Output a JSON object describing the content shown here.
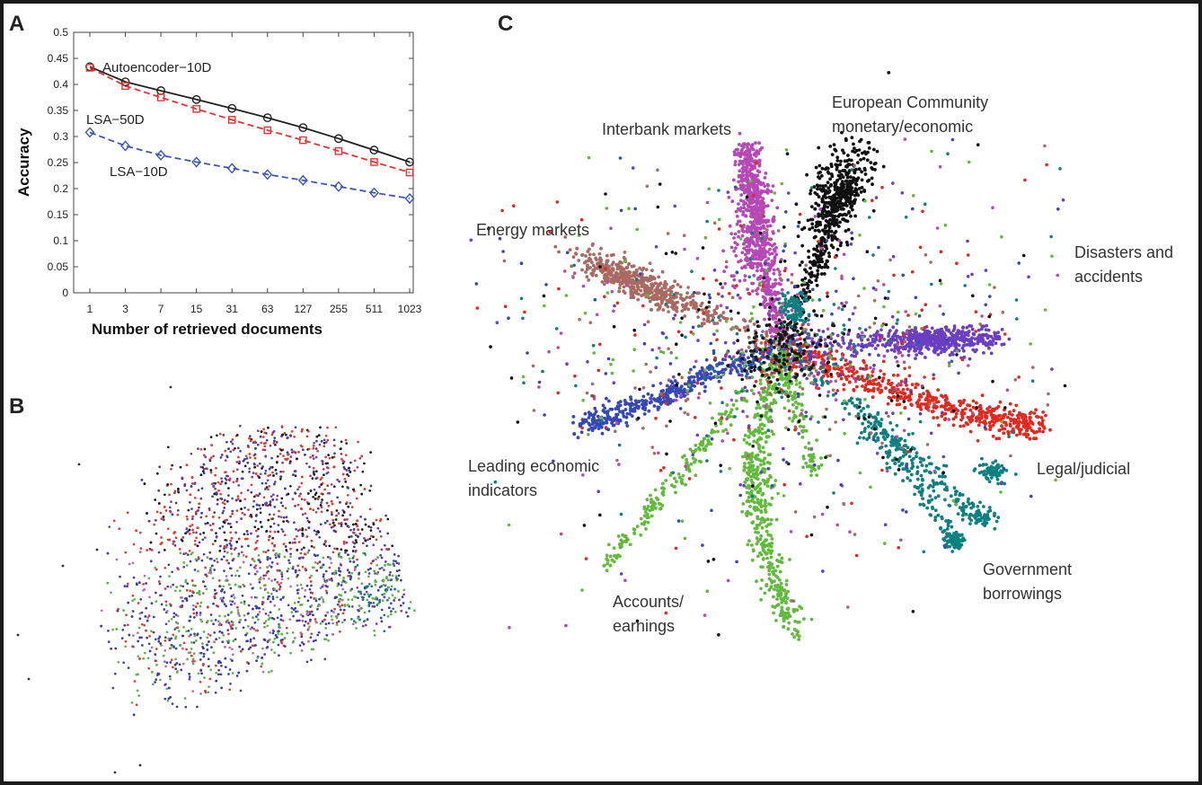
{
  "panel_labels": {
    "a": "A",
    "b": "B",
    "c": "C"
  },
  "chart_data": [
    {
      "type": "line",
      "panel": "A",
      "xlabel": "Number of retrieved documents",
      "ylabel": "Accuracy",
      "categories": [
        "1",
        "3",
        "7",
        "15",
        "31",
        "63",
        "127",
        "255",
        "511",
        "1023"
      ],
      "ylim": [
        0,
        0.5
      ],
      "yticks": [
        "0",
        "0.05",
        "0.1",
        "0.15",
        "0.2",
        "0.25",
        "0.3",
        "0.35",
        "0.4",
        "0.45",
        "0.5"
      ],
      "series": [
        {
          "name": "Autoencoder−10D",
          "color": "#222222",
          "dash": "solid",
          "marker": "circle",
          "values": [
            0.434,
            0.405,
            0.388,
            0.371,
            0.354,
            0.336,
            0.317,
            0.296,
            0.274,
            0.251
          ]
        },
        {
          "name": "LSA−50D",
          "color": "#e8322e",
          "dash": "dashed",
          "marker": "square",
          "values": [
            0.432,
            0.397,
            0.375,
            0.353,
            0.332,
            0.312,
            0.293,
            0.272,
            0.251,
            0.231
          ]
        },
        {
          "name": "LSA−10D",
          "color": "#3b55b8",
          "dash": "dashed",
          "marker": "diamond",
          "values": [
            0.308,
            0.282,
            0.264,
            0.251,
            0.239,
            0.227,
            0.216,
            0.204,
            0.192,
            0.181
          ]
        }
      ]
    },
    {
      "type": "scatter",
      "panel": "B",
      "title": "",
      "point_colors": [
        "#3e3ea8",
        "#e03c2c",
        "#7e3c9e",
        "#1a1a1a",
        "#5bb546",
        "#0f7e80",
        "#b66fb0",
        "#9a5a50"
      ]
    },
    {
      "type": "scatter",
      "panel": "C",
      "title": "",
      "clusters": [
        {
          "name": "Interbank markets",
          "color": "#b549b5"
        },
        {
          "name": "European Community monetary/economic",
          "color": "#111111"
        },
        {
          "name": "Energy markets",
          "color": "#a96a62"
        },
        {
          "name": "Disasters and accidents",
          "color": "#6b3fc1"
        },
        {
          "name": "Leading economic indicators",
          "color": "#3548b5"
        },
        {
          "name": "Legal/judicial",
          "color": "#e3281f"
        },
        {
          "name": "Government borrowings",
          "color": "#0f8080"
        },
        {
          "name": "Accounts/ earnings",
          "color": "#62ba3c"
        }
      ],
      "labels": {
        "interbank": "Interbank markets",
        "european_1": "European Community",
        "european_2": "monetary/economic",
        "energy": "Energy markets",
        "disasters_1": "Disasters and",
        "disasters_2": "accidents",
        "leading_1": "Leading economic",
        "leading_2": "indicators",
        "legal": "Legal/judicial",
        "government_1": "Government",
        "government_2": "borrowings",
        "accounts_1": "Accounts/",
        "accounts_2": "earnings"
      }
    }
  ]
}
